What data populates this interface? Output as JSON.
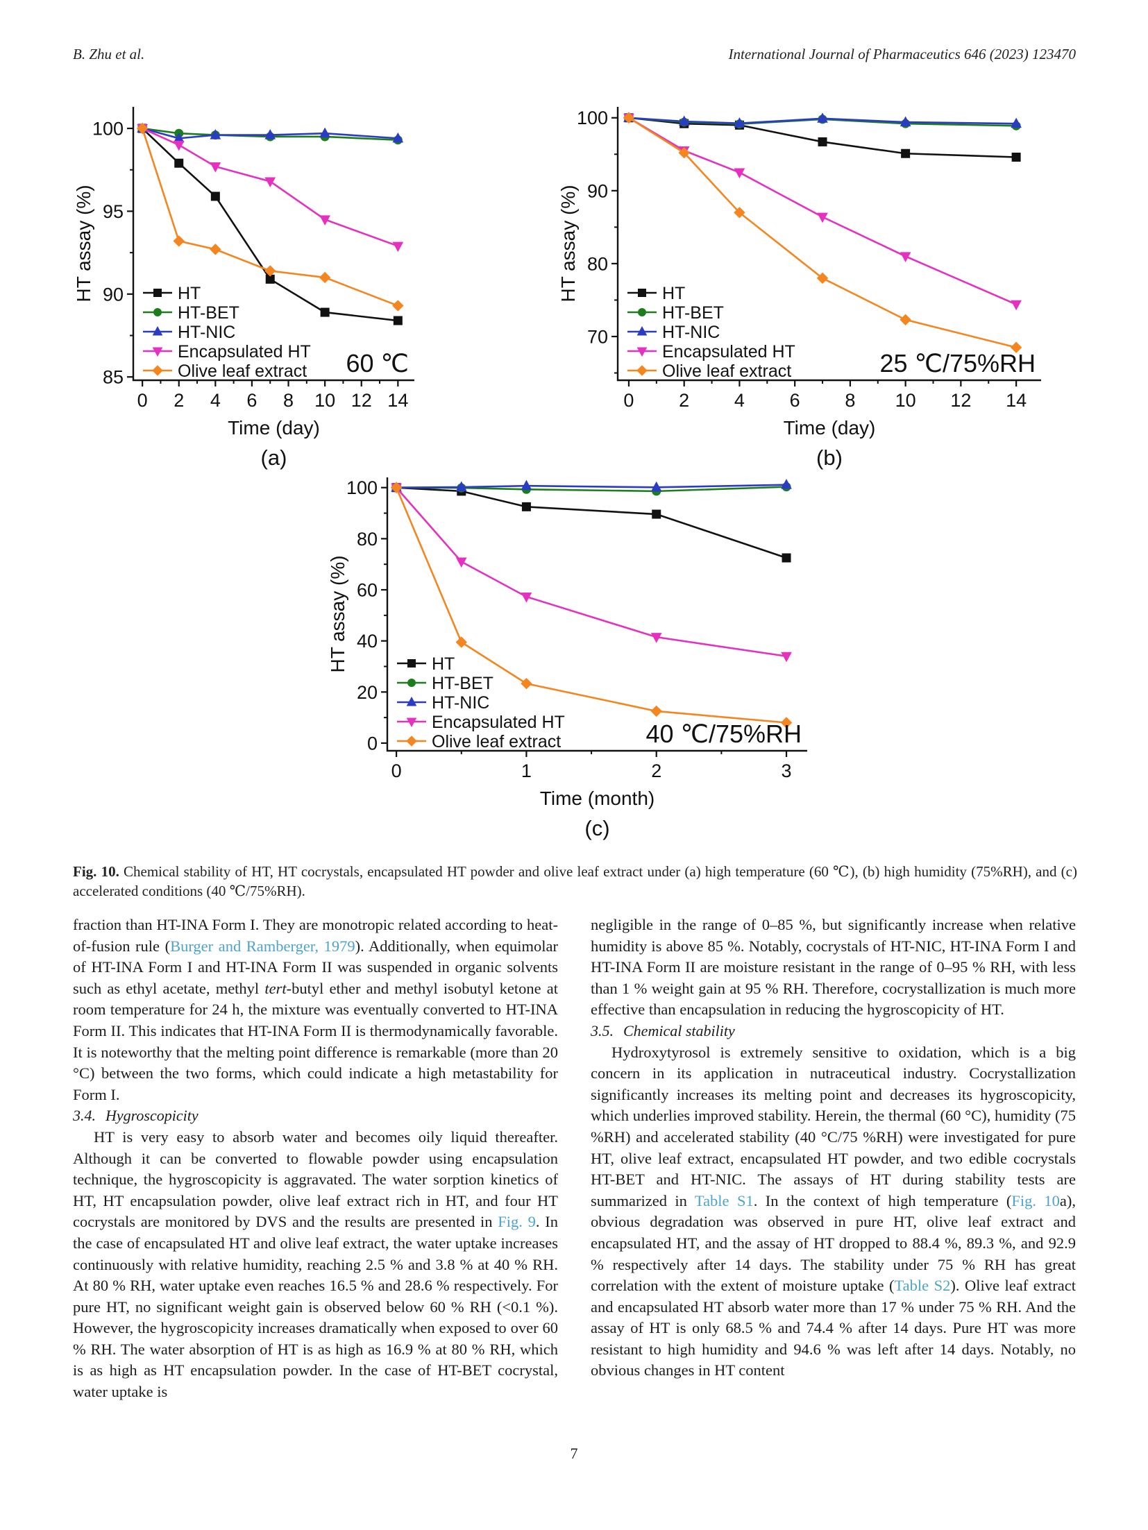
{
  "page": {
    "header_left": "B. Zhu et al.",
    "header_right": "International Journal of Pharmaceutics 646 (2023) 123470",
    "page_number": "7"
  },
  "figure": {
    "caption_label": "Fig. 10.",
    "caption_text": " Chemical stability of HT, HT cocrystals, encapsulated HT powder and olive leaf extract under (a) high temperature (60 ℃), (b) high humidity (75%RH), and (c) accelerated conditions (40 ℃/75%RH)."
  },
  "chart_data": [
    {
      "id": "a",
      "type": "line",
      "condition_label": "60 ℃",
      "sublabel": "(a)",
      "xlabel": "Time (day)",
      "ylabel": "HT assay (%)",
      "x": [
        0,
        2,
        4,
        7,
        10,
        14
      ],
      "xlim": [
        -0.5,
        14.9
      ],
      "ylim": [
        84.8,
        101.3
      ],
      "xticks": [
        0,
        2,
        4,
        6,
        8,
        10,
        12,
        14
      ],
      "yticks": [
        85,
        90,
        95,
        100
      ],
      "legend_position": "bottom-left",
      "condition_position": "bottom-right",
      "series": [
        {
          "name": "HT",
          "marker": "square",
          "color": "#111111",
          "values": [
            100,
            97.9,
            95.9,
            90.9,
            88.9,
            88.4
          ]
        },
        {
          "name": "HT-BET",
          "marker": "circle",
          "color": "#1d7d1d",
          "values": [
            100,
            99.7,
            99.6,
            99.5,
            99.5,
            99.3
          ]
        },
        {
          "name": "HT-NIC",
          "marker": "triangle-up",
          "color": "#2b3cc4",
          "values": [
            100,
            99.4,
            99.6,
            99.6,
            99.7,
            99.4
          ]
        },
        {
          "name": "Encapsulated HT",
          "marker": "triangle-down",
          "color": "#e530c0",
          "values": [
            100,
            99.0,
            97.7,
            96.8,
            94.5,
            92.9
          ]
        },
        {
          "name": "Olive leaf extract",
          "marker": "diamond",
          "color": "#f5851f",
          "values": [
            100,
            93.2,
            92.7,
            91.4,
            91.0,
            89.3
          ]
        }
      ]
    },
    {
      "id": "b",
      "type": "line",
      "condition_label": "25 ℃/75%RH",
      "sublabel": "(b)",
      "xlabel": "Time (day)",
      "ylabel": "HT assay (%)",
      "x": [
        0,
        2,
        4,
        7,
        10,
        14
      ],
      "xlim": [
        -0.4,
        14.9
      ],
      "ylim": [
        64,
        101.5
      ],
      "xticks": [
        0,
        2,
        4,
        6,
        8,
        10,
        12,
        14
      ],
      "yticks": [
        70,
        80,
        90,
        100
      ],
      "legend_position": "bottom-left",
      "condition_position": "bottom-right",
      "series": [
        {
          "name": "HT",
          "marker": "square",
          "color": "#111111",
          "values": [
            100,
            99.2,
            99.0,
            96.7,
            95.1,
            94.6
          ]
        },
        {
          "name": "HT-BET",
          "marker": "circle",
          "color": "#1d7d1d",
          "values": [
            100,
            99.4,
            99.15,
            99.8,
            99.2,
            98.9
          ]
        },
        {
          "name": "HT-NIC",
          "marker": "triangle-up",
          "color": "#2b3cc4",
          "values": [
            100,
            99.5,
            99.25,
            99.9,
            99.4,
            99.2
          ]
        },
        {
          "name": "Encapsulated HT",
          "marker": "triangle-down",
          "color": "#e530c0",
          "values": [
            100,
            95.5,
            92.5,
            86.4,
            81.0,
            74.4
          ]
        },
        {
          "name": "Olive leaf extract",
          "marker": "diamond",
          "color": "#f5851f",
          "values": [
            100,
            95.2,
            87.0,
            78.0,
            72.3,
            68.5
          ]
        }
      ]
    },
    {
      "id": "c",
      "type": "line",
      "condition_label": "40 ℃/75%RH",
      "sublabel": "(c)",
      "xlabel": "Time (month)",
      "ylabel": "HT assay (%)",
      "x": [
        0,
        0.5,
        1,
        2,
        3
      ],
      "xlim": [
        -0.07,
        3.16
      ],
      "ylim": [
        -3,
        104
      ],
      "xticks": [
        0,
        1,
        2,
        3
      ],
      "yticks": [
        0,
        20,
        40,
        60,
        80,
        100
      ],
      "legend_position": "bottom-left",
      "condition_position": "bottom-right",
      "series": [
        {
          "name": "HT",
          "marker": "square",
          "color": "#111111",
          "values": [
            100,
            98.6,
            92.5,
            89.6,
            72.5
          ]
        },
        {
          "name": "HT-BET",
          "marker": "circle",
          "color": "#1d7d1d",
          "values": [
            100,
            99.9,
            99.3,
            98.6,
            100.3
          ]
        },
        {
          "name": "HT-NIC",
          "marker": "triangle-up",
          "color": "#2b3cc4",
          "values": [
            100,
            100.2,
            100.7,
            100.1,
            101.1
          ]
        },
        {
          "name": "Encapsulated HT",
          "marker": "triangle-down",
          "color": "#e530c0",
          "values": [
            100,
            71.0,
            57.3,
            41.5,
            34.0
          ]
        },
        {
          "name": "Olive leaf extract",
          "marker": "diamond",
          "color": "#f5851f",
          "values": [
            100,
            39.5,
            23.3,
            12.5,
            8.0
          ]
        }
      ]
    }
  ],
  "body": {
    "left": {
      "p1": [
        {
          "t": "fraction than HT-INA Form I. They are monotropic related according to heat-of-fusion rule ("
        },
        {
          "t": "Burger and Ramberger, 1979",
          "s": "link"
        },
        {
          "t": "). Additionally, when equimolar of HT-INA Form I and HT-INA Form II was suspended in organic solvents such as ethyl acetate, methyl "
        },
        {
          "t": "tert",
          "s": "i"
        },
        {
          "t": "-butyl ether and methyl isobutyl ketone at room temperature for 24 h, the mixture was eventually converted to HT-INA Form II. This indicates that HT-INA Form II is thermodynamically favorable. It is noteworthy that the melting point difference is remarkable (more than 20 °C) between the two forms, which could indicate a high metastability for Form I."
        }
      ],
      "heading": {
        "num": "3.4.",
        "title": "Hygroscopicity"
      },
      "p2": [
        {
          "t": "HT is very easy to absorb water and becomes oily liquid thereafter. Although it can be converted to flowable powder using encapsulation technique, the hygroscopicity is aggravated. The water sorption kinetics of HT, HT encapsulation powder, olive leaf extract rich in HT, and four HT cocrystals are monitored by DVS and the results are presented in "
        },
        {
          "t": "Fig. 9",
          "s": "link"
        },
        {
          "t": ". In the case of encapsulated HT and olive leaf extract, the water uptake increases continuously with relative humidity, reaching 2.5 % and 3.8 % at 40 % RH. At 80 % RH, water uptake even reaches 16.5 % and 28.6 % respectively. For pure HT, no significant weight gain is observed below 60 % RH (<0.1 %). However, the hygroscopicity increases dramatically when exposed to over 60 % RH. The water absorption of HT is as high as 16.9 % at 80 % RH, which is as high as HT encapsulation powder. In the case of HT-BET cocrystal, water uptake is"
        }
      ]
    },
    "right": {
      "p1": [
        {
          "t": "negligible in the range of 0–85 %, but significantly increase when relative humidity is above 85 %. Notably, cocrystals of HT-NIC, HT-INA Form I and HT-INA Form II are moisture resistant in the range of 0–95 % RH, with less than 1 % weight gain at 95 % RH. Therefore, cocrystallization is much more effective than encapsulation in reducing the hygroscopicity of HT."
        }
      ],
      "heading": {
        "num": "3.5.",
        "title": "Chemical stability"
      },
      "p2": [
        {
          "t": "Hydroxytyrosol is extremely sensitive to oxidation, which is a big concern in its application in nutraceutical industry. Cocrystallization significantly increases its melting point and decreases its hygroscopicity, which underlies improved stability. Herein, the thermal (60 °C), humidity (75 %RH) and accelerated stability (40 °C/75 %RH) were investigated for pure HT, olive leaf extract, encapsulated HT powder, and two edible cocrystals HT-BET and HT-NIC. The assays of HT during stability tests are summarized in "
        },
        {
          "t": "Table S1",
          "s": "link"
        },
        {
          "t": ". In the context of high temperature ("
        },
        {
          "t": "Fig. 10",
          "s": "link"
        },
        {
          "t": "a), obvious degradation was observed in pure HT, olive leaf extract and encapsulated HT, and the assay of HT dropped to 88.4 %, 89.3 %, and 92.9 % respectively after 14 days. The stability under 75 % RH has great correlation with the extent of moisture uptake ("
        },
        {
          "t": "Table S2",
          "s": "link"
        },
        {
          "t": "). Olive leaf extract and encapsulated HT absorb water more than 17 % under 75 % RH. And the assay of HT is only 68.5 % and 74.4 % after 14 days. Pure HT was more resistant to high humidity and 94.6 % was left after 14 days. Notably, no obvious changes in HT content"
        }
      ]
    }
  }
}
